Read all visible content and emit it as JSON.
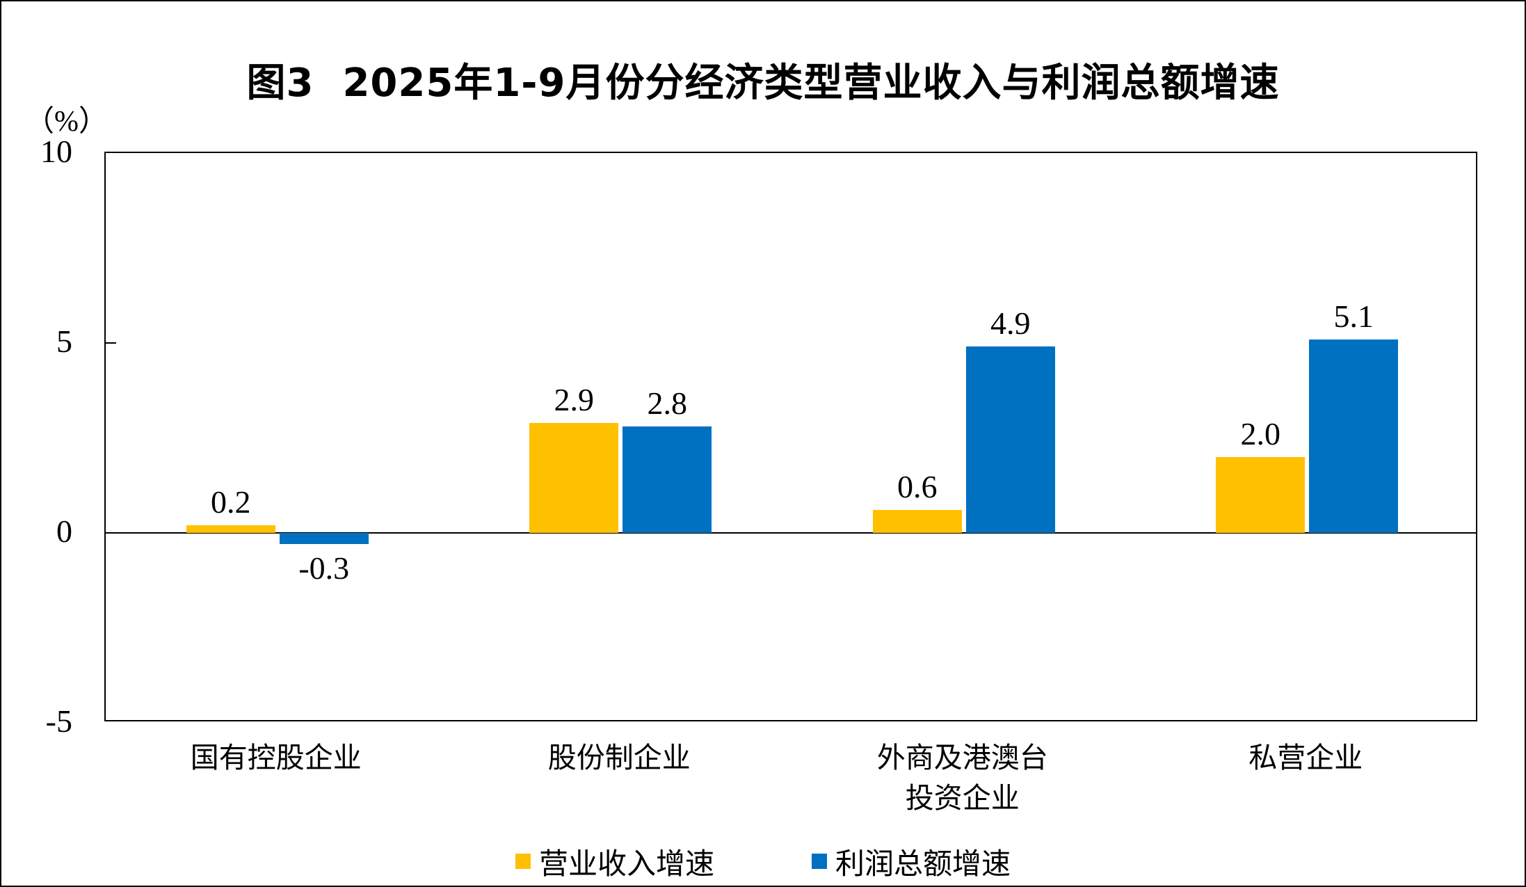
{
  "figure": {
    "title": "图3  2025年1-9月份分经济类型营业收入与利润总额增速",
    "unit_label": "（%）"
  },
  "chart_data": {
    "type": "bar",
    "title": "图3 2025年1-9月份分经济类型营业收入与利润总额增速",
    "ylabel": "（%）",
    "categories": [
      "国有控股企业",
      "股份制企业",
      "外商及港澳台投资企业",
      "私营企业"
    ],
    "category_label_lines": [
      [
        "国有控股企业"
      ],
      [
        "股份制企业"
      ],
      [
        "外商及港澳台",
        "投资企业"
      ],
      [
        "私营企业"
      ]
    ],
    "series": [
      {
        "name": "营业收入增速",
        "color": "#FFC000",
        "values": [
          0.2,
          2.9,
          0.6,
          2.0
        ]
      },
      {
        "name": "利润总额增速",
        "color": "#0070C0",
        "values": [
          -0.3,
          2.8,
          4.9,
          5.1
        ]
      }
    ],
    "value_label_format": "0.0",
    "ylim": [
      -5,
      10
    ],
    "yticks": [
      10,
      5,
      0,
      -5
    ],
    "grid": false,
    "legend_position": "bottom",
    "axis_color": "#000000",
    "background": "#FFFFFF"
  }
}
